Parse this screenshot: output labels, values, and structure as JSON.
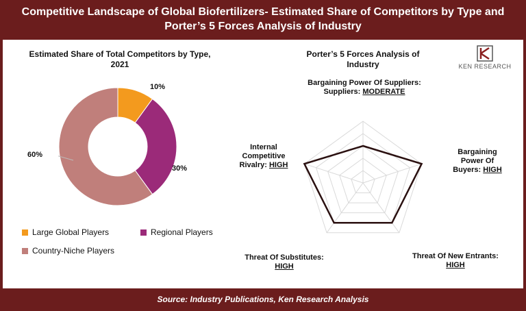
{
  "title": "Competitive Landscape of Global Biofertilizers- Estimated Share of Competitors by Type and Porter’s 5 Forces Analysis of Industry",
  "footer": "Source: Industry Publications, Ken Research Analysis",
  "logo": {
    "text": "KEN RESEARCH",
    "mark": "K"
  },
  "colors": {
    "header_bg": "#6b1d1d",
    "large": "#f39a1e",
    "regional": "#9b2a79",
    "niche": "#c07f7b",
    "radar_line": "#2a1010"
  },
  "chart_data": [
    {
      "type": "pie",
      "title": "Estimated Share of Total Competitors by Type, 2021",
      "categories": [
        "Large Global Players",
        "Regional Players",
        "Country-Niche Players"
      ],
      "values": [
        10,
        30,
        60
      ],
      "labels": [
        "10%",
        "30%",
        "60%"
      ],
      "legend": "bottom"
    },
    {
      "type": "radar",
      "title": "Porter’s 5 Forces Analysis of Industry",
      "levels": 5,
      "forces": [
        {
          "name": "Bargaining Power Of Suppliers:",
          "rating": "MODERATE",
          "value": 3
        },
        {
          "name": "Bargaining Power Of Buyers:",
          "rating": "HIGH",
          "value": 5
        },
        {
          "name": "Threat Of New Entrants:",
          "rating": "HIGH",
          "value": 4
        },
        {
          "name": "Threat Of Substitutes:",
          "rating": "HIGH",
          "value": 4
        },
        {
          "name": "Internal Competitive Rivalry:",
          "rating": "HIGH",
          "value": 5
        }
      ]
    }
  ]
}
